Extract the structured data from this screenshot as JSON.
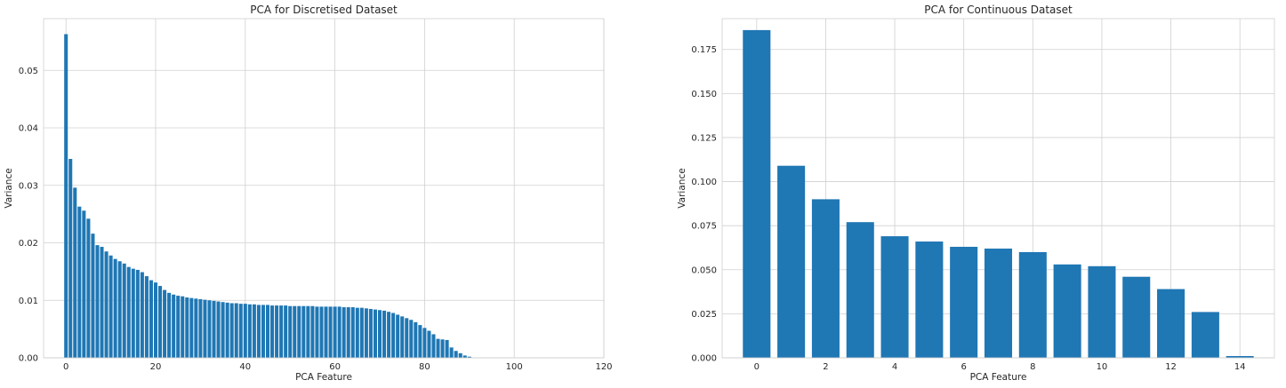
{
  "chart_data": [
    {
      "type": "bar",
      "title": "PCA for Discretised Dataset",
      "xlabel": "PCA Feature",
      "ylabel": "Variance",
      "xlim": [
        -5,
        120
      ],
      "ylim": [
        0,
        0.059
      ],
      "xticks": [
        0,
        20,
        40,
        60,
        80,
        100,
        120
      ],
      "yticks": [
        0.0,
        0.01,
        0.02,
        0.03,
        0.04,
        0.05
      ],
      "ytick_labels": [
        "0.00",
        "0.01",
        "0.02",
        "0.03",
        "0.04",
        "0.05"
      ],
      "grid": true,
      "color": "#1f77b4",
      "x": [
        0,
        1,
        2,
        3,
        4,
        5,
        6,
        7,
        8,
        9,
        10,
        11,
        12,
        13,
        14,
        15,
        16,
        17,
        18,
        19,
        20,
        21,
        22,
        23,
        24,
        25,
        26,
        27,
        28,
        29,
        30,
        31,
        32,
        33,
        34,
        35,
        36,
        37,
        38,
        39,
        40,
        41,
        42,
        43,
        44,
        45,
        46,
        47,
        48,
        49,
        50,
        51,
        52,
        53,
        54,
        55,
        56,
        57,
        58,
        59,
        60,
        61,
        62,
        63,
        64,
        65,
        66,
        67,
        68,
        69,
        70,
        71,
        72,
        73,
        74,
        75,
        76,
        77,
        78,
        79,
        80,
        81,
        82,
        83,
        84,
        85,
        86,
        87,
        88,
        89,
        90
      ],
      "values": [
        0.0563,
        0.0346,
        0.0296,
        0.0263,
        0.0256,
        0.0242,
        0.0216,
        0.0196,
        0.0193,
        0.0185,
        0.0178,
        0.0172,
        0.0168,
        0.0164,
        0.0158,
        0.0155,
        0.0153,
        0.0149,
        0.0142,
        0.0135,
        0.0131,
        0.0125,
        0.0118,
        0.0113,
        0.011,
        0.0108,
        0.0107,
        0.0105,
        0.0104,
        0.0103,
        0.0102,
        0.0101,
        0.01,
        0.0099,
        0.0098,
        0.0097,
        0.0096,
        0.0095,
        0.0095,
        0.0094,
        0.0094,
        0.0093,
        0.0093,
        0.0092,
        0.0092,
        0.0092,
        0.0091,
        0.0091,
        0.0091,
        0.0091,
        0.009,
        0.009,
        0.009,
        0.009,
        0.009,
        0.009,
        0.0089,
        0.0089,
        0.0089,
        0.0089,
        0.0089,
        0.0089,
        0.0088,
        0.0088,
        0.0088,
        0.0087,
        0.0087,
        0.0086,
        0.0085,
        0.0084,
        0.0083,
        0.0082,
        0.008,
        0.0078,
        0.0075,
        0.0072,
        0.0069,
        0.0066,
        0.0062,
        0.0057,
        0.0052,
        0.0047,
        0.0041,
        0.0033,
        0.0032,
        0.0031,
        0.0018,
        0.0012,
        0.0008,
        0.0004,
        0.0002
      ]
    },
    {
      "type": "bar",
      "title": "PCA for Continuous Dataset",
      "xlabel": "PCA Feature",
      "ylabel": "Variance",
      "xlim": [
        -1,
        15
      ],
      "ylim": [
        0,
        0.1925
      ],
      "xticks": [
        0,
        2,
        4,
        6,
        8,
        10,
        12,
        14
      ],
      "yticks": [
        0.0,
        0.025,
        0.05,
        0.075,
        0.1,
        0.125,
        0.15,
        0.175
      ],
      "ytick_labels": [
        "0.000",
        "0.025",
        "0.050",
        "0.075",
        "0.100",
        "0.125",
        "0.150",
        "0.175"
      ],
      "grid": true,
      "color": "#1f77b4",
      "x": [
        0,
        1,
        2,
        3,
        4,
        5,
        6,
        7,
        8,
        9,
        10,
        11,
        12,
        13,
        14
      ],
      "values": [
        0.186,
        0.109,
        0.09,
        0.077,
        0.069,
        0.066,
        0.063,
        0.062,
        0.06,
        0.053,
        0.052,
        0.046,
        0.039,
        0.026,
        0.001
      ]
    }
  ]
}
